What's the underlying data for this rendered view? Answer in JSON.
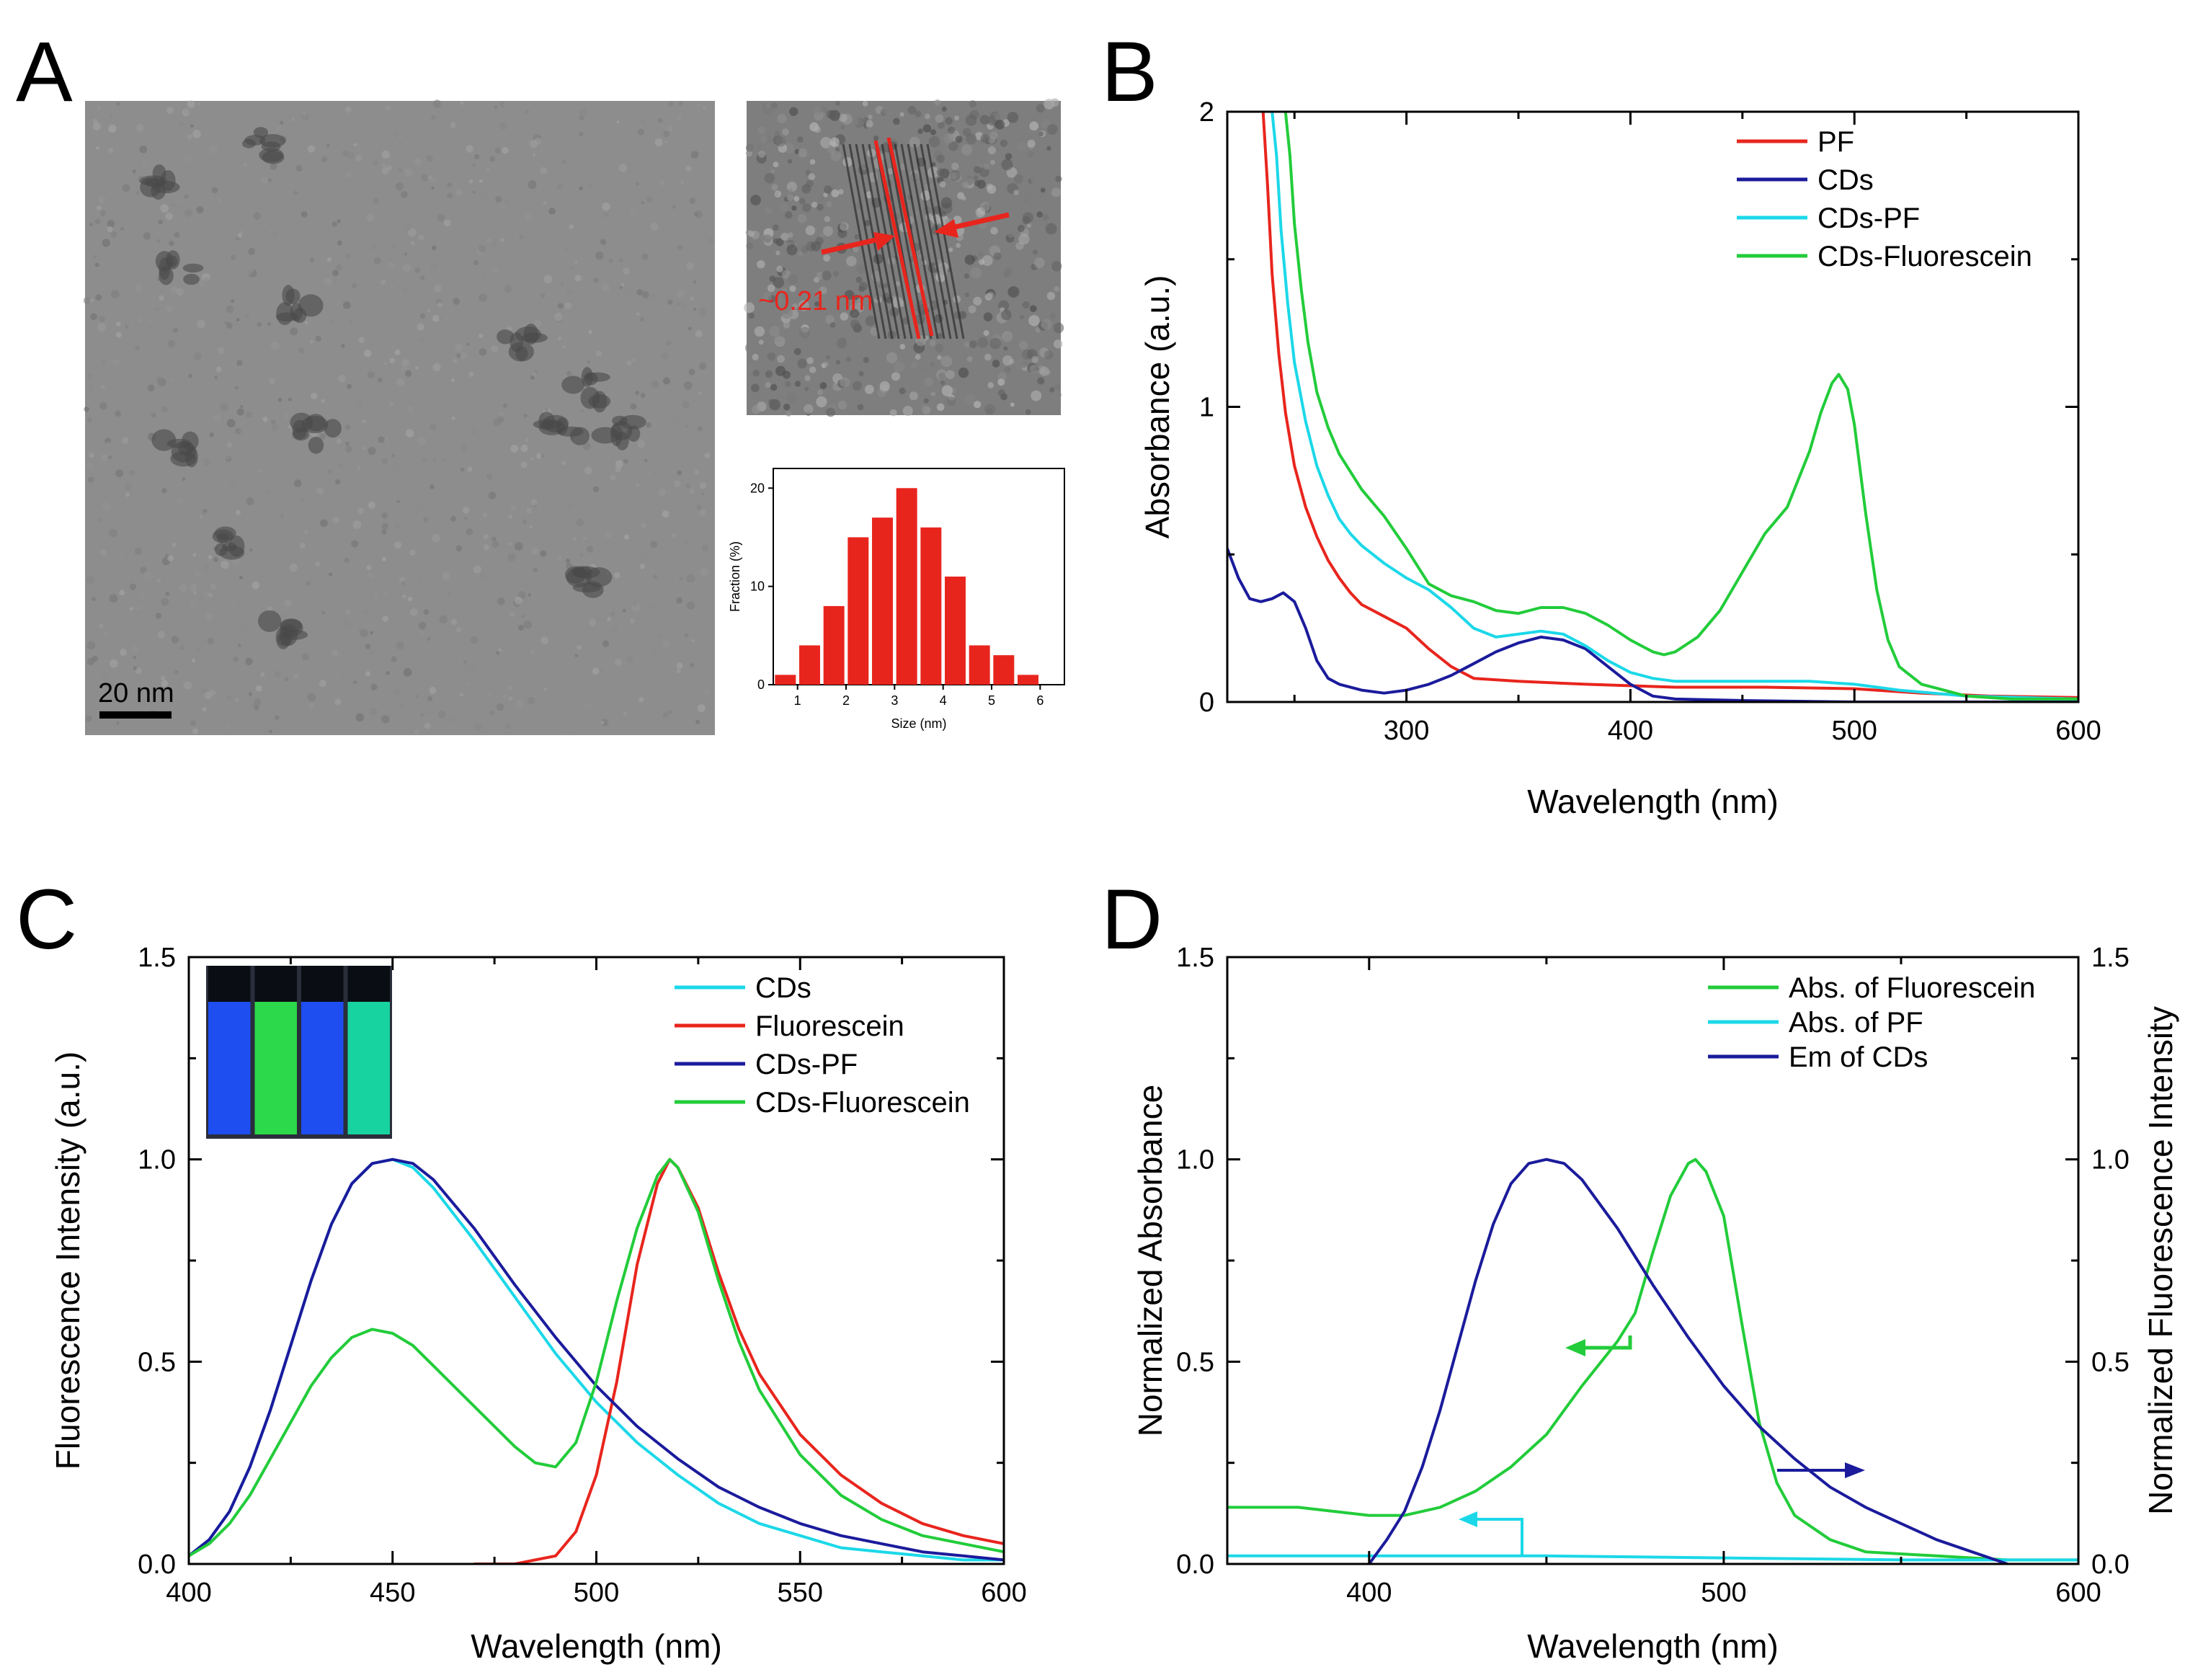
{
  "panels": {
    "a": {
      "letter": "A",
      "scale_bar_label": "20 nm",
      "lattice_label": "~0.21 nm",
      "histogram": {
        "type": "bar",
        "xlabel": "Size (nm)",
        "ylabel": "Fraction (%)",
        "categories": [
          0.75,
          1.25,
          1.75,
          2.25,
          2.75,
          3.25,
          3.75,
          4.25,
          4.75,
          5.25,
          5.75
        ],
        "values": [
          1,
          4,
          8,
          15,
          17,
          20,
          16,
          11,
          4,
          3,
          1
        ],
        "xlim": [
          0.5,
          6.5
        ],
        "ylim": [
          0,
          22
        ],
        "xticks": [
          "1",
          "2",
          "3",
          "4",
          "5",
          "6"
        ],
        "yticks": [
          "0",
          "10",
          "20"
        ],
        "bar_color": "#e8251d"
      }
    },
    "b": {
      "letter": "B"
    },
    "c": {
      "letter": "C",
      "vial_colors": [
        "#1e4df0",
        "#2bd94a",
        "#1e4df0",
        "#17d3a0"
      ]
    },
    "d": {
      "letter": "D"
    }
  },
  "chart_data": [
    {
      "id": "B",
      "type": "line",
      "title": "",
      "xlabel": "Wavelength (nm)",
      "ylabel": "Absorbance (a.u.)",
      "xlim": [
        220,
        600
      ],
      "ylim": [
        0,
        2
      ],
      "xticks": [
        "300",
        "400",
        "500",
        "600"
      ],
      "yticks": [
        "0",
        "1",
        "2"
      ],
      "legend_position": "top-right",
      "series": [
        {
          "name": "PF",
          "color": "#e8251d",
          "x": [
            236,
            238,
            240,
            243,
            246,
            250,
            255,
            260,
            265,
            270,
            275,
            280,
            290,
            300,
            310,
            320,
            330,
            350,
            380,
            420,
            460,
            500,
            530,
            560,
            600
          ],
          "y": [
            2.0,
            1.75,
            1.45,
            1.18,
            0.98,
            0.8,
            0.66,
            0.56,
            0.48,
            0.42,
            0.37,
            0.33,
            0.29,
            0.25,
            0.18,
            0.12,
            0.08,
            0.07,
            0.06,
            0.05,
            0.05,
            0.045,
            0.03,
            0.02,
            0.015
          ]
        },
        {
          "name": "CDs",
          "color": "#1b1b9c",
          "x": [
            220,
            225,
            230,
            235,
            240,
            245,
            250,
            255,
            260,
            265,
            270,
            280,
            290,
            300,
            310,
            320,
            330,
            340,
            350,
            360,
            370,
            380,
            390,
            400,
            410,
            420,
            450,
            500,
            550,
            600
          ],
          "y": [
            0.52,
            0.42,
            0.35,
            0.34,
            0.35,
            0.37,
            0.34,
            0.25,
            0.14,
            0.08,
            0.06,
            0.04,
            0.03,
            0.04,
            0.06,
            0.09,
            0.13,
            0.17,
            0.2,
            0.22,
            0.21,
            0.18,
            0.12,
            0.06,
            0.02,
            0.01,
            0.005,
            0.0,
            0.0,
            0.0
          ]
        },
        {
          "name": "CDs-PF",
          "color": "#1bd8e8",
          "x": [
            240,
            242,
            244,
            247,
            250,
            255,
            260,
            265,
            270,
            275,
            280,
            290,
            300,
            310,
            320,
            330,
            340,
            350,
            360,
            370,
            380,
            390,
            400,
            410,
            420,
            450,
            480,
            500,
            520,
            550,
            600
          ],
          "y": [
            2.0,
            1.85,
            1.6,
            1.35,
            1.15,
            0.95,
            0.8,
            0.7,
            0.62,
            0.57,
            0.53,
            0.47,
            0.42,
            0.38,
            0.32,
            0.25,
            0.22,
            0.23,
            0.24,
            0.23,
            0.19,
            0.14,
            0.1,
            0.08,
            0.07,
            0.07,
            0.07,
            0.06,
            0.04,
            0.02,
            0.01
          ]
        },
        {
          "name": "CDs-Fluorescein",
          "color": "#22cc3a",
          "x": [
            246,
            248,
            250,
            253,
            256,
            260,
            265,
            270,
            280,
            290,
            300,
            310,
            320,
            330,
            340,
            350,
            360,
            370,
            380,
            390,
            400,
            410,
            415,
            420,
            430,
            440,
            450,
            460,
            470,
            480,
            485,
            490,
            493,
            497,
            500,
            505,
            510,
            515,
            520,
            530,
            540,
            550,
            570,
            600
          ],
          "y": [
            2.0,
            1.85,
            1.62,
            1.4,
            1.22,
            1.05,
            0.93,
            0.84,
            0.72,
            0.63,
            0.52,
            0.4,
            0.36,
            0.34,
            0.31,
            0.3,
            0.32,
            0.32,
            0.3,
            0.26,
            0.21,
            0.17,
            0.16,
            0.17,
            0.22,
            0.31,
            0.44,
            0.57,
            0.66,
            0.85,
            0.98,
            1.08,
            1.11,
            1.06,
            0.94,
            0.64,
            0.38,
            0.21,
            0.12,
            0.06,
            0.04,
            0.02,
            0.01,
            0.01
          ]
        }
      ]
    },
    {
      "id": "C",
      "type": "line",
      "title": "",
      "xlabel": "Wavelength (nm)",
      "ylabel": "Fluorescence Intensity (a.u.)",
      "xlim": [
        400,
        600
      ],
      "ylim": [
        0,
        1.5
      ],
      "xticks": [
        "400",
        "450",
        "500",
        "550",
        "600"
      ],
      "yticks": [
        "0.0",
        "0.5",
        "1.0",
        "1.5"
      ],
      "legend_position": "top-right",
      "series": [
        {
          "name": "CDs",
          "color": "#1bd8e8",
          "x": [
            400,
            405,
            410,
            415,
            420,
            425,
            430,
            435,
            440,
            445,
            450,
            455,
            460,
            470,
            480,
            490,
            500,
            510,
            520,
            530,
            540,
            550,
            560,
            570,
            580,
            590,
            600
          ],
          "y": [
            0.02,
            0.06,
            0.13,
            0.24,
            0.38,
            0.54,
            0.7,
            0.84,
            0.94,
            0.99,
            1.0,
            0.98,
            0.93,
            0.8,
            0.66,
            0.52,
            0.4,
            0.3,
            0.22,
            0.15,
            0.1,
            0.07,
            0.04,
            0.03,
            0.02,
            0.01,
            0.01
          ]
        },
        {
          "name": "Fluorescein",
          "color": "#e8251d",
          "x": [
            470,
            480,
            490,
            495,
            500,
            505,
            510,
            515,
            518,
            520,
            525,
            530,
            535,
            540,
            550,
            560,
            570,
            580,
            590,
            600
          ],
          "y": [
            0.0,
            0.0,
            0.02,
            0.08,
            0.22,
            0.45,
            0.74,
            0.94,
            1.0,
            0.98,
            0.88,
            0.72,
            0.58,
            0.47,
            0.32,
            0.22,
            0.15,
            0.1,
            0.07,
            0.05
          ]
        },
        {
          "name": "CDs-PF",
          "color": "#1b1b9c",
          "x": [
            400,
            405,
            410,
            415,
            420,
            425,
            430,
            435,
            440,
            445,
            450,
            455,
            460,
            470,
            480,
            490,
            500,
            510,
            520,
            530,
            540,
            550,
            560,
            570,
            580,
            590,
            600
          ],
          "y": [
            0.02,
            0.06,
            0.13,
            0.24,
            0.38,
            0.54,
            0.7,
            0.84,
            0.94,
            0.99,
            1.0,
            0.99,
            0.95,
            0.83,
            0.69,
            0.56,
            0.44,
            0.34,
            0.26,
            0.19,
            0.14,
            0.1,
            0.07,
            0.05,
            0.03,
            0.02,
            0.01
          ]
        },
        {
          "name": "CDs-Fluorescein",
          "color": "#22cc3a",
          "x": [
            400,
            405,
            410,
            415,
            420,
            425,
            430,
            435,
            440,
            445,
            450,
            455,
            460,
            470,
            480,
            485,
            490,
            495,
            500,
            505,
            510,
            515,
            518,
            520,
            525,
            530,
            535,
            540,
            550,
            560,
            570,
            580,
            590,
            600
          ],
          "y": [
            0.02,
            0.05,
            0.1,
            0.17,
            0.26,
            0.35,
            0.44,
            0.51,
            0.56,
            0.58,
            0.57,
            0.54,
            0.49,
            0.39,
            0.29,
            0.25,
            0.24,
            0.3,
            0.45,
            0.65,
            0.83,
            0.96,
            1.0,
            0.98,
            0.87,
            0.7,
            0.55,
            0.43,
            0.27,
            0.17,
            0.11,
            0.07,
            0.05,
            0.03
          ]
        }
      ]
    },
    {
      "id": "D",
      "type": "line",
      "title": "",
      "xlabel": "Wavelength (nm)",
      "ylabel": "Normalized Absorbance",
      "ylabel_right": "Normalized Fluorescence Intensity",
      "xlim": [
        360,
        600
      ],
      "ylim": [
        0,
        1.5
      ],
      "xticks": [
        "400",
        "500",
        "600"
      ],
      "yticks": [
        "0.0",
        "0.5",
        "1.0",
        "1.5"
      ],
      "legend_position": "top-right",
      "series": [
        {
          "name": "Abs. of Fluorescein",
          "color": "#22cc3a",
          "x": [
            360,
            370,
            380,
            390,
            400,
            410,
            420,
            430,
            440,
            450,
            460,
            470,
            475,
            480,
            485,
            490,
            492,
            495,
            500,
            505,
            510,
            515,
            520,
            530,
            540,
            560,
            580,
            600
          ],
          "y": [
            0.14,
            0.14,
            0.14,
            0.13,
            0.12,
            0.12,
            0.14,
            0.18,
            0.24,
            0.32,
            0.44,
            0.55,
            0.62,
            0.77,
            0.91,
            0.99,
            1.0,
            0.97,
            0.86,
            0.6,
            0.35,
            0.2,
            0.12,
            0.06,
            0.03,
            0.02,
            0.01,
            0.01
          ]
        },
        {
          "name": "Abs. of PF",
          "color": "#1bd8e8",
          "x": [
            360,
            400,
            450,
            500,
            550,
            600
          ],
          "y": [
            0.02,
            0.02,
            0.02,
            0.015,
            0.01,
            0.01
          ]
        },
        {
          "name": "Em of CDs",
          "color": "#1b1b9c",
          "x": [
            400,
            405,
            410,
            415,
            420,
            425,
            430,
            435,
            440,
            445,
            450,
            455,
            460,
            470,
            480,
            490,
            500,
            510,
            520,
            530,
            540,
            550,
            560,
            570,
            580
          ],
          "y": [
            0.0,
            0.06,
            0.13,
            0.24,
            0.38,
            0.54,
            0.7,
            0.84,
            0.94,
            0.99,
            1.0,
            0.99,
            0.95,
            0.83,
            0.69,
            0.56,
            0.44,
            0.34,
            0.26,
            0.19,
            0.14,
            0.1,
            0.06,
            0.03,
            0.0
          ]
        }
      ]
    }
  ]
}
